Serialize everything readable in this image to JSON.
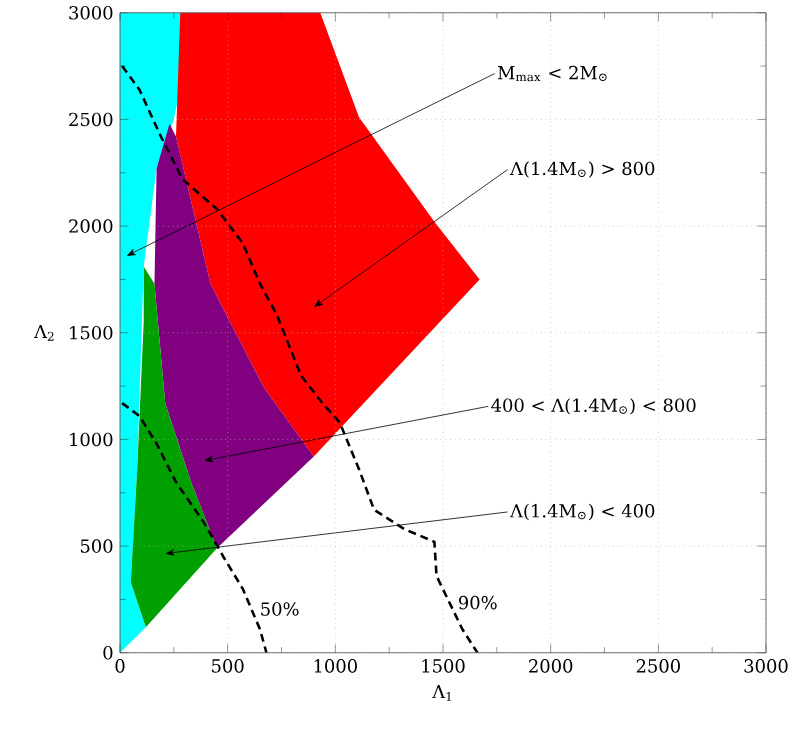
{
  "chart_data": {
    "type": "line",
    "xlabel": "Λ$_{1}$",
    "ylabel": "Λ$_{2}$",
    "xlim": [
      0,
      3000
    ],
    "ylim": [
      0,
      3000
    ],
    "xticks": [
      0,
      500,
      1000,
      1500,
      2000,
      2500,
      3000
    ],
    "yticks": [
      0,
      500,
      1000,
      1500,
      2000,
      2500,
      3000
    ],
    "grid": true,
    "series": [
      {
        "type": "area",
        "color": "#00ffff",
        "x": [
          0,
          0,
          350,
          250,
          170,
          110,
          80,
          50,
          120
        ],
        "values": [
          0,
          3000,
          3000,
          2500,
          2270,
          1810,
          860,
          330,
          120
        ]
      },
      {
        "type": "area",
        "color": "#ff0000",
        "x": [
          280,
          930,
          1110,
          1460,
          1670,
          900,
          670,
          420,
          260
        ],
        "values": [
          3000,
          3000,
          2510,
          2020,
          1750,
          920,
          1240,
          1730,
          2420
        ]
      },
      {
        "type": "area",
        "color": "#800080",
        "x": [
          230,
          260,
          420,
          670,
          900,
          450,
          330,
          210,
          160,
          170
        ],
        "values": [
          2480,
          2420,
          1730,
          1240,
          920,
          490,
          800,
          1170,
          1730,
          2270
        ]
      },
      {
        "type": "area",
        "color": "#00a000",
        "x": [
          110,
          160,
          210,
          330,
          450,
          120,
          50,
          80,
          110
        ],
        "values": [
          1810,
          1730,
          1170,
          800,
          490,
          120,
          330,
          860,
          1550
        ]
      },
      {
        "type": "line",
        "name": "50%",
        "color": "#000000",
        "line_style": "dashed",
        "x": [
          10,
          90,
          170,
          260,
          390,
          480,
          570,
          650,
          680
        ],
        "values": [
          1170,
          1110,
          980,
          800,
          610,
          450,
          300,
          110,
          0
        ]
      },
      {
        "type": "line",
        "name": "90%",
        "color": "#000000",
        "line_style": "dashed",
        "x": [
          10,
          90,
          190,
          290,
          450,
          570,
          650,
          730,
          840,
          940,
          1020,
          1110,
          1180,
          1320,
          1460,
          1470,
          1590,
          1660
        ],
        "values": [
          2750,
          2640,
          2420,
          2220,
          2080,
          1920,
          1730,
          1580,
          1300,
          1170,
          1080,
          860,
          670,
          580,
          520,
          360,
          110,
          0
        ]
      }
    ],
    "annotations": [
      "M$_{max}$ < 2M$_{⊙}$",
      "Λ(1.4M$_{⊙}$) > 800",
      "400 < Λ(1.4M$_{⊙}$) < 800",
      "Λ(1.4M$_{⊙}$) < 400"
    ]
  }
}
